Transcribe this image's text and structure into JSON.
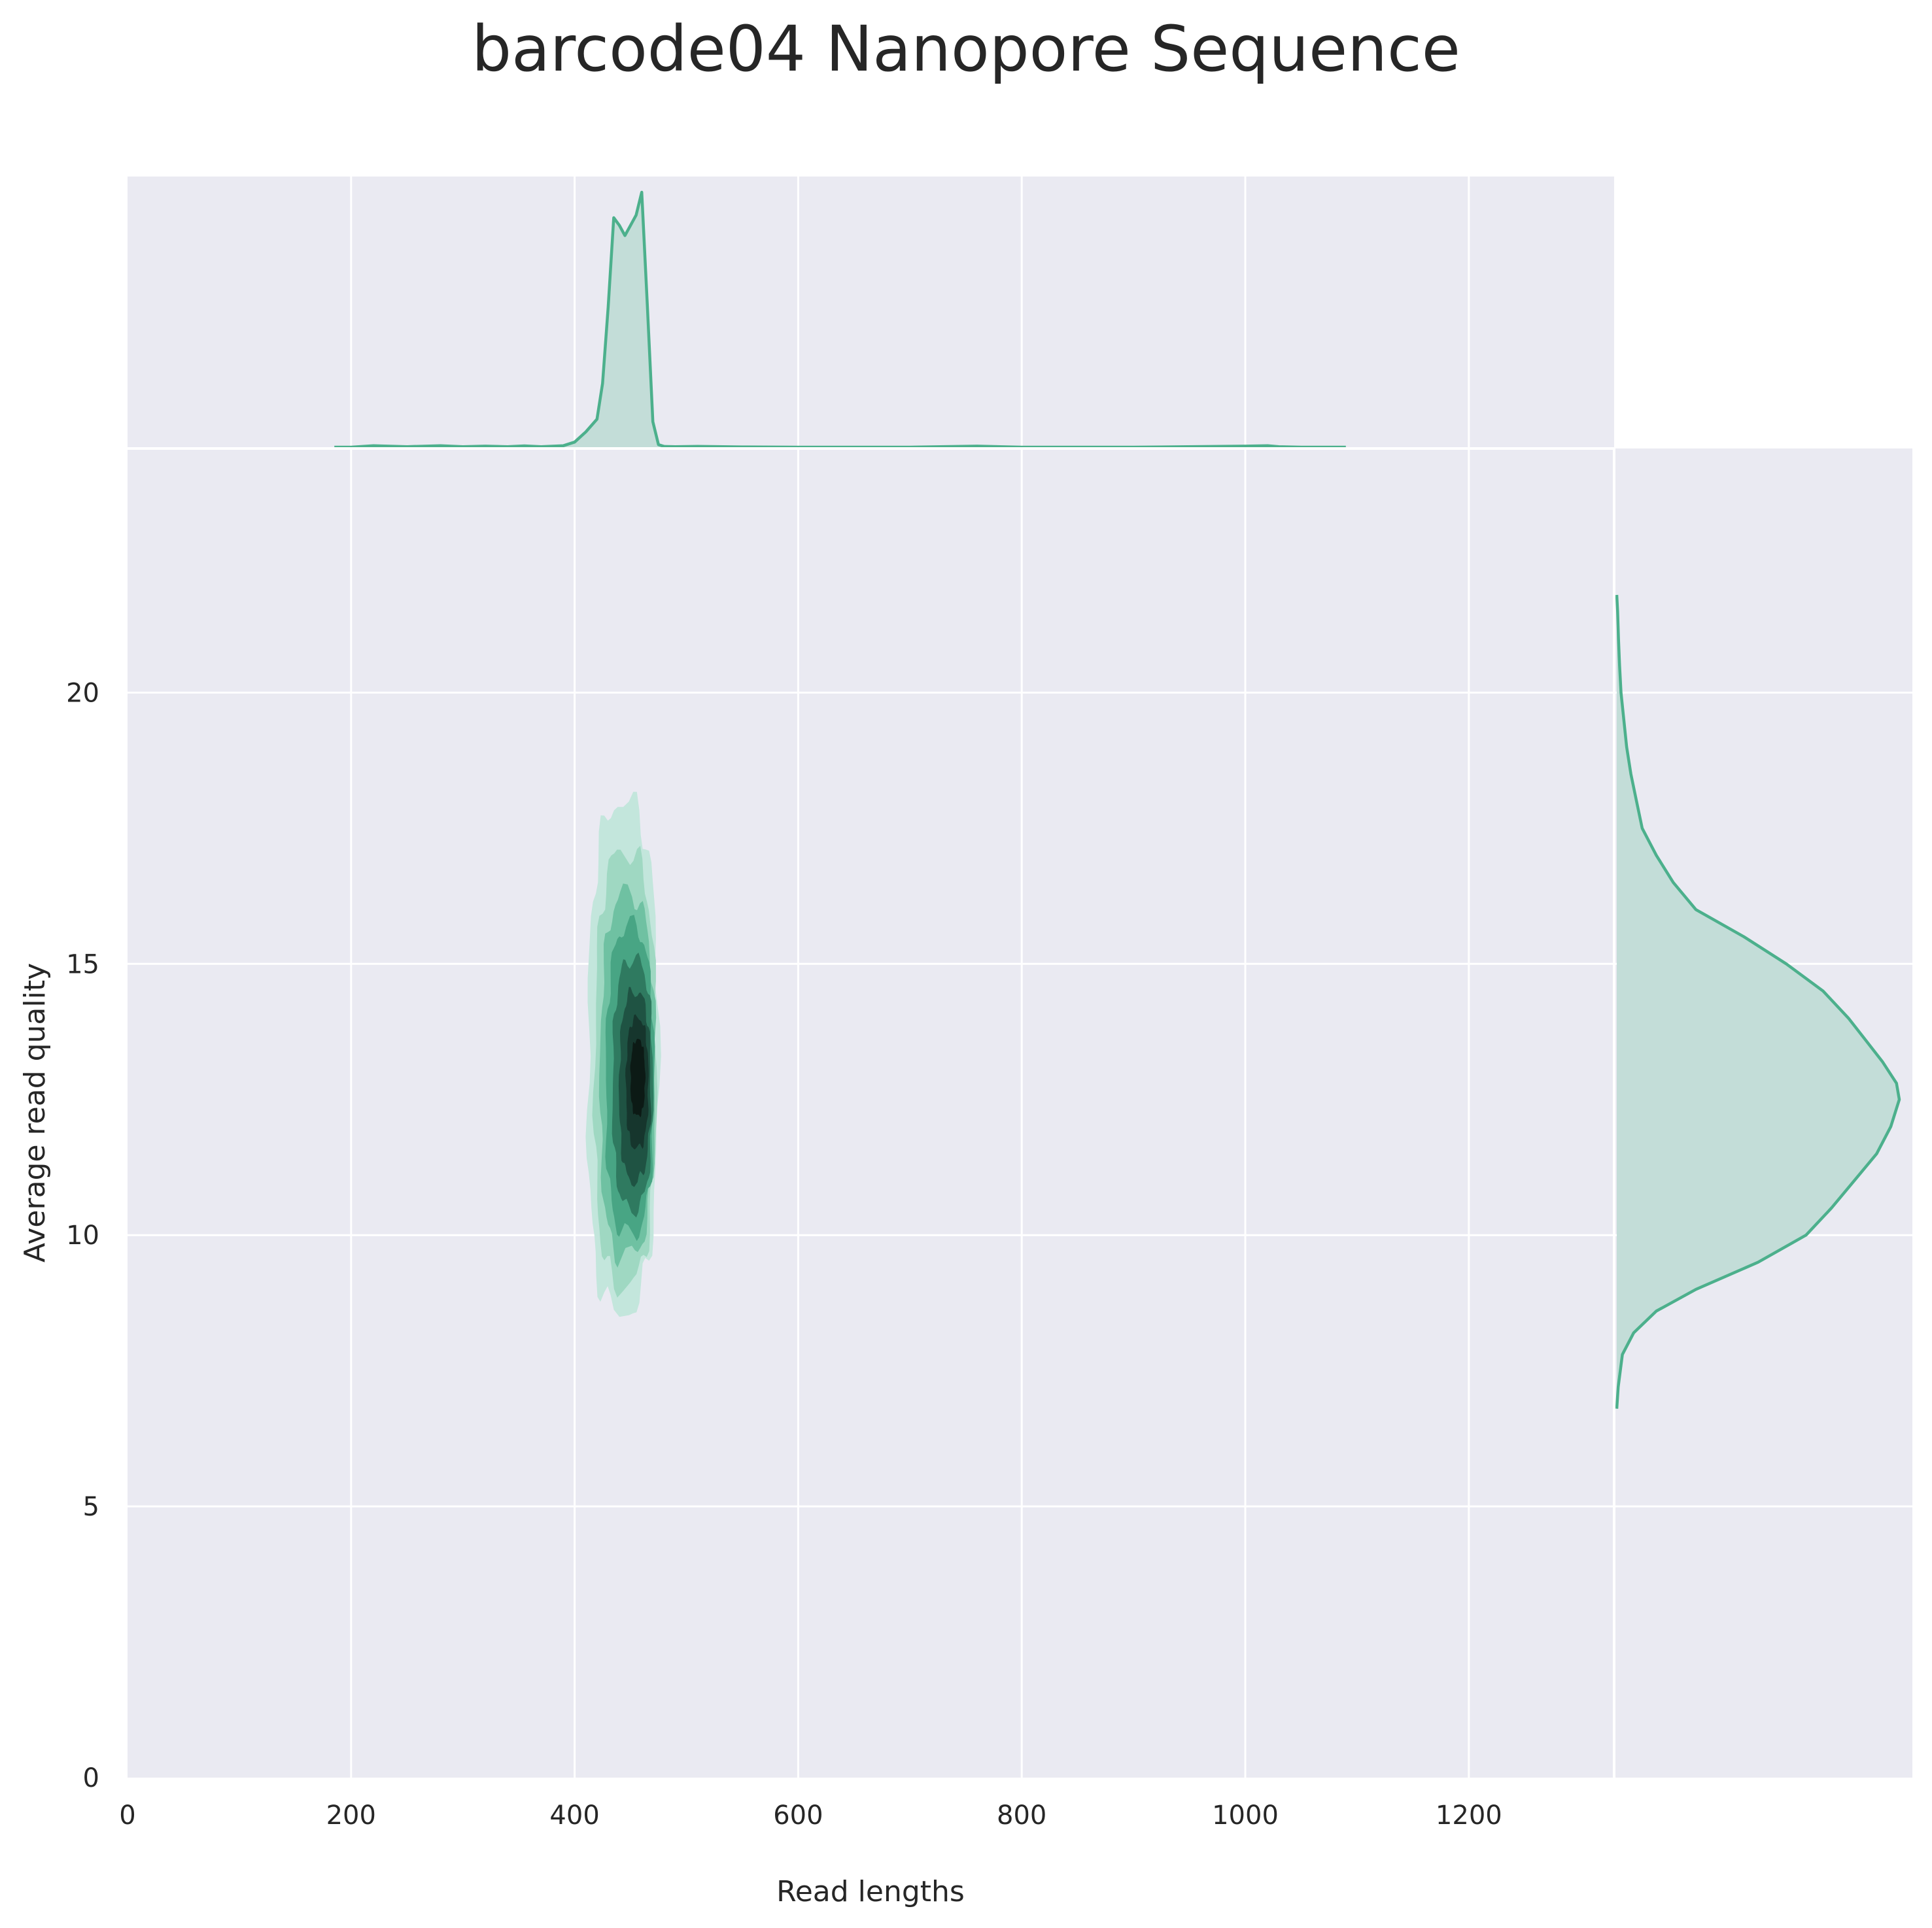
{
  "chart_data": {
    "type": "kde-jointplot",
    "title": "barcode04 Nanopore Sequence",
    "xlabel": "Read lengths",
    "ylabel": "Average read quality",
    "xlim": [
      0,
      1330
    ],
    "ylim": [
      0,
      24.5
    ],
    "xticks": [
      0,
      200,
      400,
      600,
      800,
      1000,
      1200
    ],
    "yticks": [
      0,
      5,
      10,
      15,
      20
    ],
    "grid": true,
    "colors": {
      "background": "#eaeaf2",
      "grid": "#ffffff",
      "line": "#4cb08c",
      "fill": "#c3ddd8",
      "text": "#262626"
    },
    "joint_density": {
      "center_x": 455,
      "center_y": 13.0,
      "x_range": [
        412,
        475
      ],
      "y_range": [
        8.6,
        18.0
      ],
      "levels": [
        {
          "level": 1,
          "color": "#c3e6dc",
          "x_range": [
            412,
            475
          ],
          "y_range": [
            8.6,
            18.0
          ]
        },
        {
          "level": 2,
          "color": "#9fd8c2",
          "x_range": [
            418,
            473
          ],
          "y_range": [
            9.1,
            17.1
          ]
        },
        {
          "level": 3,
          "color": "#6fc1a2",
          "x_range": [
            423,
            472
          ],
          "y_range": [
            9.6,
            16.3
          ]
        },
        {
          "level": 4,
          "color": "#48a584",
          "x_range": [
            428,
            471
          ],
          "y_range": [
            10.0,
            15.7
          ]
        },
        {
          "level": 5,
          "color": "#2f7a60",
          "x_range": [
            434,
            470
          ],
          "y_range": [
            10.5,
            15.1
          ]
        },
        {
          "level": 6,
          "color": "#1f5343",
          "x_range": [
            440,
            468
          ],
          "y_range": [
            11.0,
            14.5
          ]
        },
        {
          "level": 7,
          "color": "#16362d",
          "x_range": [
            446,
            466
          ],
          "y_range": [
            11.6,
            14.0
          ]
        },
        {
          "level": 8,
          "color": "#0c1a15",
          "x_range": [
            450,
            463
          ],
          "y_range": [
            12.2,
            13.6
          ]
        }
      ]
    },
    "marginal_x": {
      "x": [
        185,
        200,
        220,
        250,
        280,
        300,
        320,
        340,
        355,
        370,
        390,
        400,
        410,
        420,
        425,
        430,
        435,
        440,
        445,
        450,
        455,
        460,
        465,
        470,
        475,
        480,
        490,
        510,
        550,
        600,
        700,
        760,
        800,
        900,
        1000,
        1020,
        1030,
        1050,
        1090
      ],
      "density": [
        0,
        0,
        0.006,
        0.002,
        0.006,
        0.002,
        0.004,
        0.002,
        0.005,
        0.002,
        0.006,
        0.02,
        0.06,
        0.11,
        0.25,
        0.55,
        0.9,
        0.87,
        0.83,
        0.87,
        0.91,
        1.0,
        0.56,
        0.1,
        0.01,
        0.003,
        0.002,
        0.003,
        0.001,
        0,
        0,
        0.004,
        0,
        0,
        0.004,
        0.006,
        0.002,
        0,
        0
      ]
    },
    "marginal_y": {
      "y": [
        6.8,
        7.2,
        7.8,
        8.2,
        8.6,
        9.0,
        9.5,
        10.0,
        10.5,
        11.0,
        11.5,
        12.0,
        12.5,
        12.8,
        13.2,
        13.6,
        14.0,
        14.5,
        15.0,
        15.5,
        16.0,
        16.5,
        17.0,
        17.5,
        18.0,
        18.5,
        19.0,
        19.5,
        20.0,
        20.5,
        21.0,
        21.5,
        21.8
      ],
      "density": [
        0,
        0.005,
        0.02,
        0.06,
        0.14,
        0.28,
        0.5,
        0.67,
        0.76,
        0.84,
        0.92,
        0.97,
        1.0,
        0.99,
        0.94,
        0.88,
        0.82,
        0.73,
        0.6,
        0.45,
        0.28,
        0.2,
        0.14,
        0.09,
        0.07,
        0.05,
        0.035,
        0.025,
        0.015,
        0.01,
        0.006,
        0.003,
        0
      ]
    }
  }
}
